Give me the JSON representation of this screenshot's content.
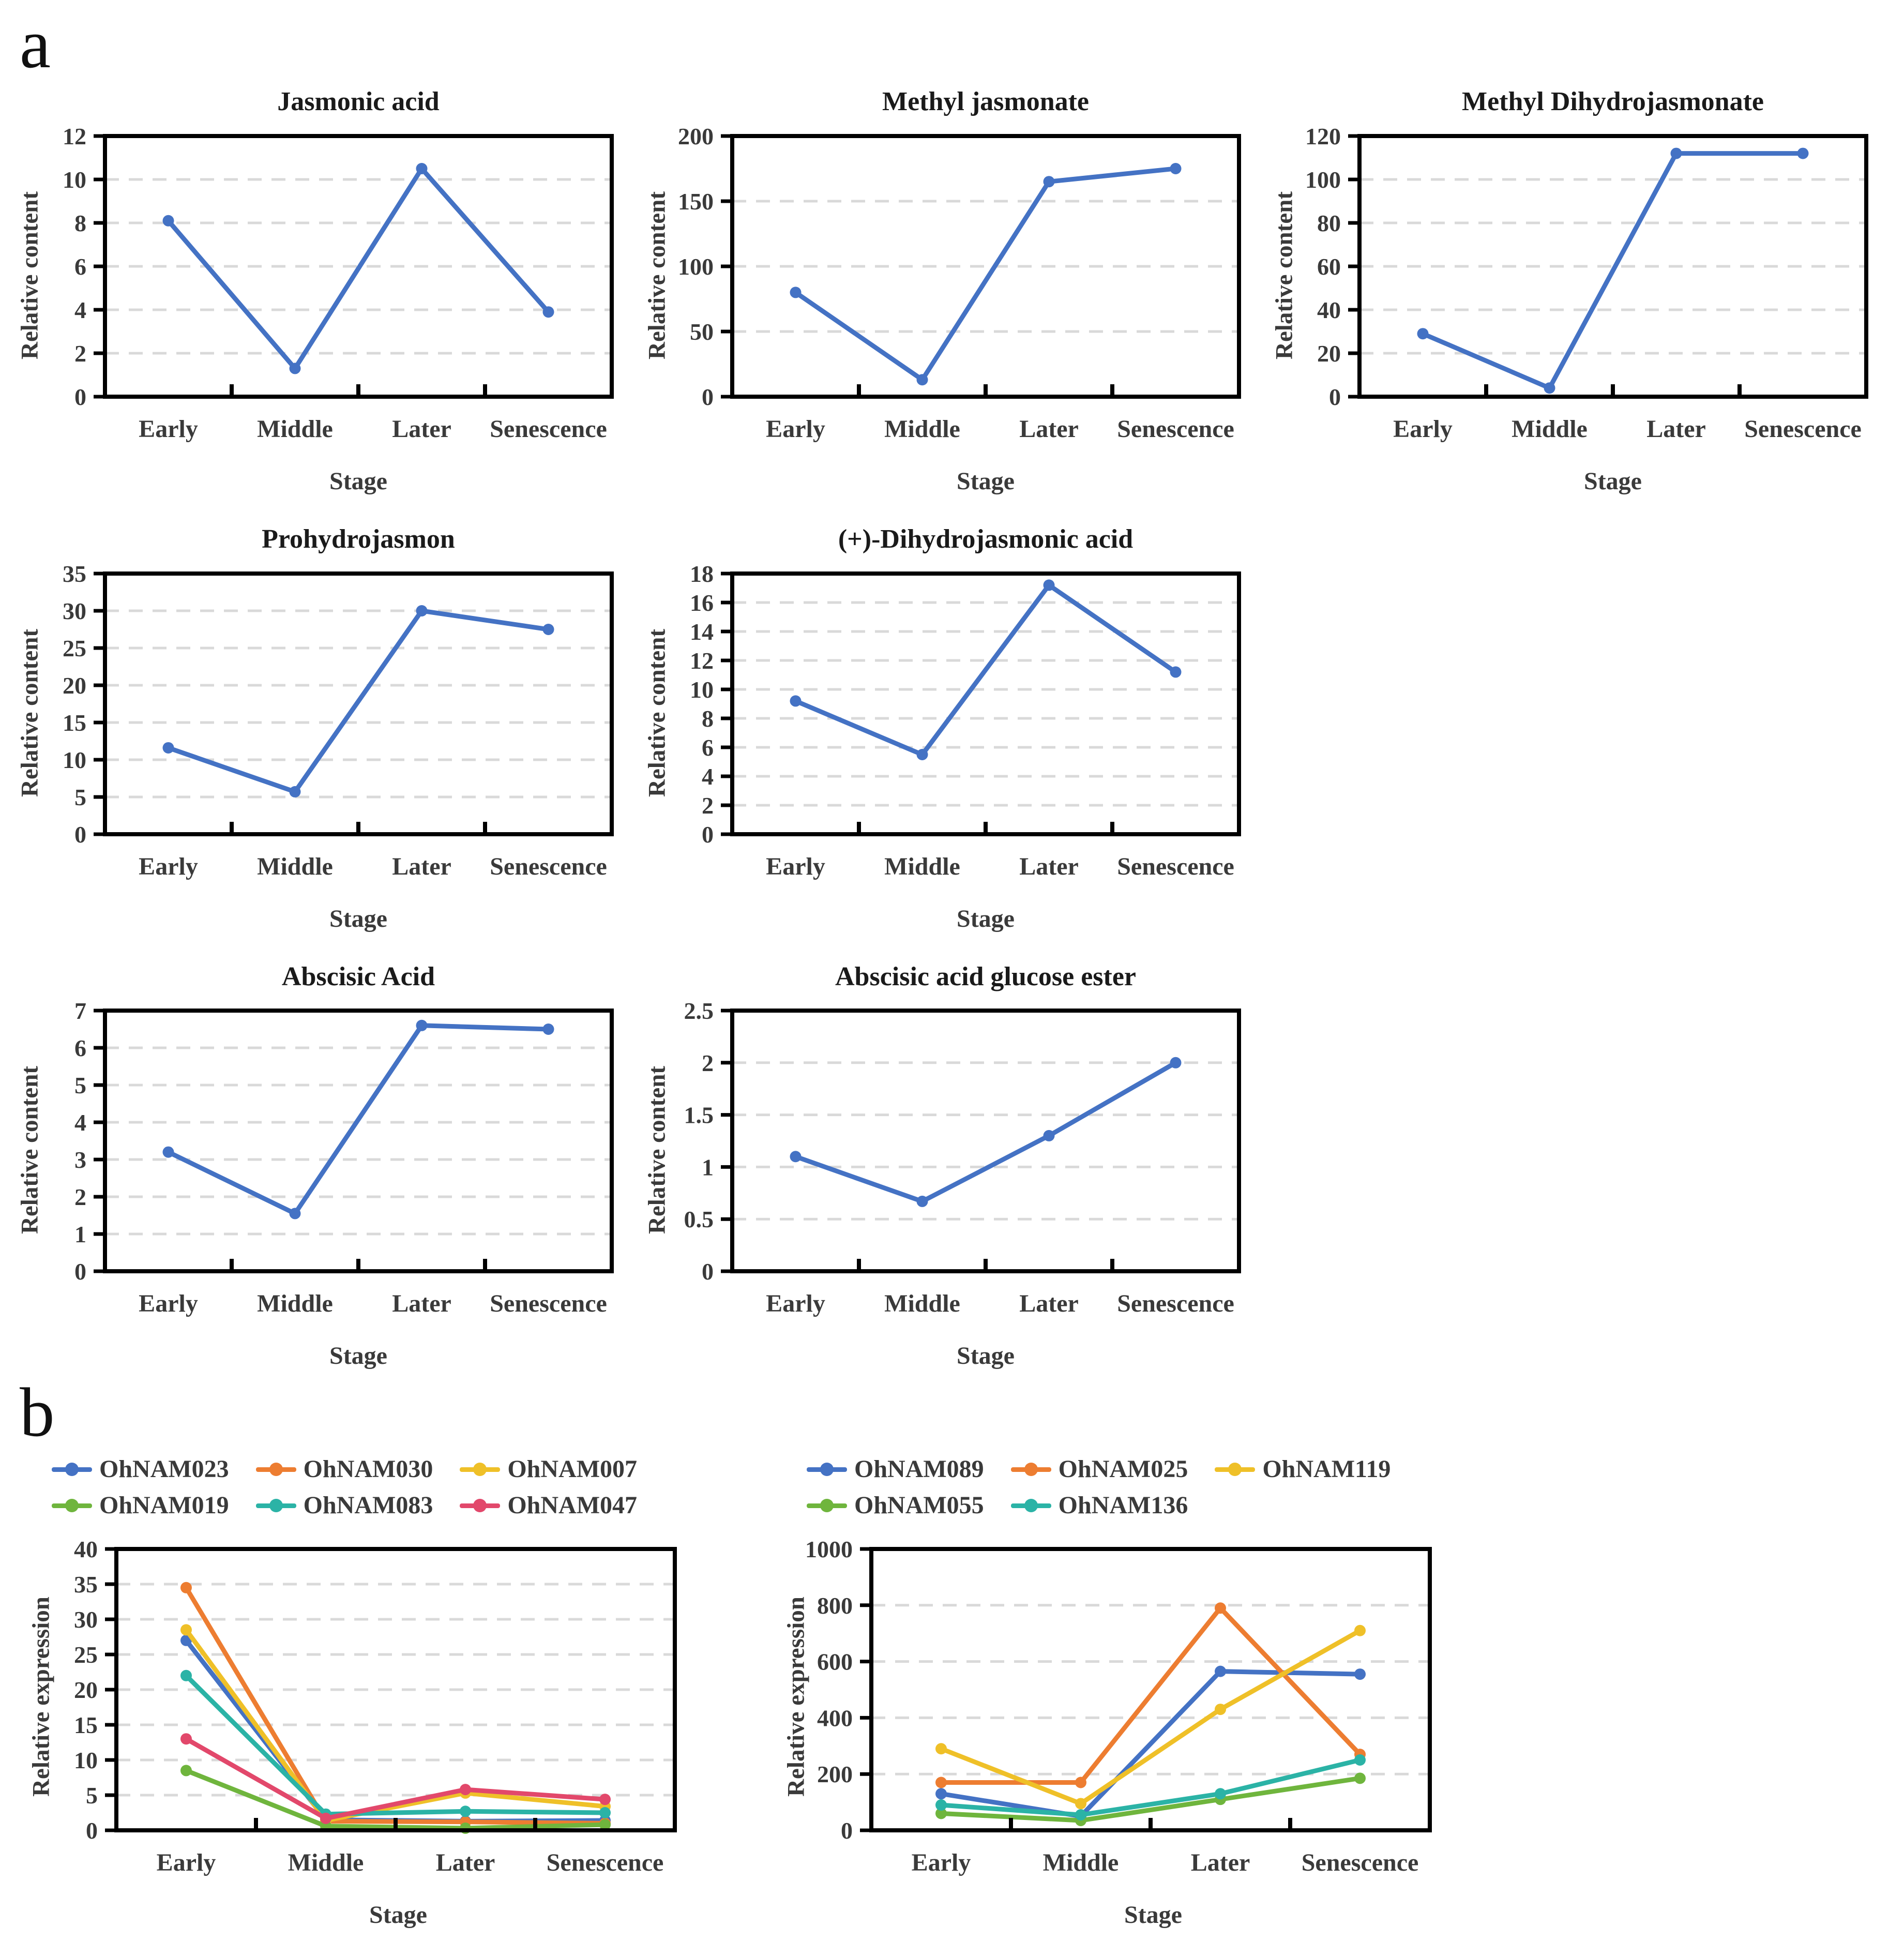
{
  "panel_a_label": "a",
  "panel_b_label": "b",
  "colors": {
    "blue": "#4472C4",
    "orange": "#ED7D31",
    "yellow": "#EFC028",
    "green": "#6FB53D",
    "teal": "#2BB3A6",
    "red": "#E2486B",
    "grid": "#D9D9D9",
    "axis": "#000000",
    "text": "#262626"
  },
  "chart_data": [
    {
      "type": "line",
      "panel": "a",
      "title": "Jasmonic acid",
      "xlabel": "Stage",
      "ylabel": "Relative content",
      "categories": [
        "Early",
        "Middle",
        "Later",
        "Senescence"
      ],
      "ylim": [
        0,
        12
      ],
      "ytick_step": 2,
      "grid": "dashed-horizontal",
      "legend_position": "none",
      "series": [
        {
          "name": "Jasmonic acid",
          "color": "blue",
          "values": [
            8.1,
            1.3,
            10.5,
            3.9
          ]
        }
      ]
    },
    {
      "type": "line",
      "panel": "a",
      "title": "Methyl jasmonate",
      "xlabel": "Stage",
      "ylabel": "Relative content",
      "categories": [
        "Early",
        "Middle",
        "Later",
        "Senescence"
      ],
      "ylim": [
        0,
        200
      ],
      "ytick_step": 50,
      "grid": "dashed-horizontal",
      "legend_position": "none",
      "series": [
        {
          "name": "Methyl jasmonate",
          "color": "blue",
          "values": [
            80,
            13,
            165,
            175
          ]
        }
      ]
    },
    {
      "type": "line",
      "panel": "a",
      "title": "Methyl Dihydrojasmonate",
      "xlabel": "Stage",
      "ylabel": "Relative content",
      "categories": [
        "Early",
        "Middle",
        "Later",
        "Senescence"
      ],
      "ylim": [
        0,
        120
      ],
      "ytick_step": 20,
      "grid": "dashed-horizontal",
      "legend_position": "none",
      "series": [
        {
          "name": "Methyl Dihydrojasmonate",
          "color": "blue",
          "values": [
            29,
            4,
            112,
            112
          ]
        }
      ]
    },
    {
      "type": "line",
      "panel": "a",
      "title": "Prohydrojasmon",
      "xlabel": "Stage",
      "ylabel": "Relative content",
      "categories": [
        "Early",
        "Middle",
        "Later",
        "Senescence"
      ],
      "ylim": [
        0,
        35
      ],
      "ytick_step": 5,
      "grid": "dashed-horizontal",
      "legend_position": "none",
      "series": [
        {
          "name": "Prohydrojasmon",
          "color": "blue",
          "values": [
            11.6,
            5.7,
            30,
            27.5
          ]
        }
      ]
    },
    {
      "type": "line",
      "panel": "a",
      "title": "(+)-Dihydrojasmonic acid",
      "xlabel": "Stage",
      "ylabel": "Relative content",
      "categories": [
        "Early",
        "Middle",
        "Later",
        "Senescence"
      ],
      "ylim": [
        0,
        18
      ],
      "ytick_step": 2,
      "grid": "dashed-horizontal",
      "legend_position": "none",
      "series": [
        {
          "name": "(+)-Dihydrojasmonic acid",
          "color": "blue",
          "values": [
            9.2,
            5.5,
            17.2,
            11.2
          ]
        }
      ]
    },
    {
      "type": "line",
      "panel": "a",
      "title": "Abscisic Acid",
      "xlabel": "Stage",
      "ylabel": "Relative content",
      "categories": [
        "Early",
        "Middle",
        "Later",
        "Senescence"
      ],
      "ylim": [
        0,
        7
      ],
      "ytick_step": 1,
      "grid": "dashed-horizontal",
      "legend_position": "none",
      "series": [
        {
          "name": "Abscisic Acid",
          "color": "blue",
          "values": [
            3.2,
            1.55,
            6.6,
            6.5
          ]
        }
      ]
    },
    {
      "type": "line",
      "panel": "a",
      "title": "Abscisic acid glucose ester",
      "xlabel": "Stage",
      "ylabel": "Relative content",
      "categories": [
        "Early",
        "Middle",
        "Later",
        "Senescence"
      ],
      "ylim": [
        0,
        2.5
      ],
      "ytick_step": 0.5,
      "grid": "dashed-horizontal",
      "legend_position": "none",
      "series": [
        {
          "name": "Abscisic acid glucose ester",
          "color": "blue",
          "values": [
            1.1,
            0.67,
            1.3,
            2.0
          ]
        }
      ]
    },
    {
      "type": "line",
      "panel": "b",
      "title": "",
      "xlabel": "Stage",
      "ylabel": "Relative expression",
      "categories": [
        "Early",
        "Middle",
        "Later",
        "Senescence"
      ],
      "ylim": [
        0,
        40
      ],
      "ytick_step": 5,
      "grid": "dashed-horizontal",
      "legend_position": "top",
      "legend_rows": [
        [
          0,
          1,
          2
        ],
        [
          3,
          4,
          5
        ]
      ],
      "series": [
        {
          "name": "OhNAM023",
          "color": "blue",
          "values": [
            27,
            1.5,
            1.3,
            1.4
          ]
        },
        {
          "name": "OhNAM030",
          "color": "orange",
          "values": [
            34.5,
            1.3,
            1.2,
            1.0
          ]
        },
        {
          "name": "OhNAM007",
          "color": "yellow",
          "values": [
            28.5,
            1.4,
            5.3,
            3.4
          ]
        },
        {
          "name": "OhNAM019",
          "color": "green",
          "values": [
            8.5,
            0.6,
            0.3,
            0.8
          ]
        },
        {
          "name": "OhNAM083",
          "color": "teal",
          "values": [
            22,
            2.3,
            2.7,
            2.5
          ]
        },
        {
          "name": "OhNAM047",
          "color": "red",
          "values": [
            13,
            1.7,
            5.8,
            4.4
          ]
        }
      ]
    },
    {
      "type": "line",
      "panel": "b",
      "title": "",
      "xlabel": "Stage",
      "ylabel": "Relative expression",
      "categories": [
        "Early",
        "Middle",
        "Later",
        "Senescence"
      ],
      "ylim": [
        0,
        1000
      ],
      "ytick_step": 200,
      "grid": "dashed-horizontal",
      "legend_position": "top",
      "legend_rows": [
        [
          0,
          1,
          2
        ],
        [
          3,
          4
        ]
      ],
      "series": [
        {
          "name": "OhNAM089",
          "color": "blue",
          "values": [
            130,
            50,
            565,
            555
          ]
        },
        {
          "name": "OhNAM025",
          "color": "orange",
          "values": [
            170,
            170,
            790,
            270
          ]
        },
        {
          "name": "OhNAM119",
          "color": "yellow",
          "values": [
            290,
            95,
            430,
            710
          ]
        },
        {
          "name": "OhNAM055",
          "color": "green",
          "values": [
            60,
            35,
            110,
            185
          ]
        },
        {
          "name": "OhNAM136",
          "color": "teal",
          "values": [
            90,
            55,
            130,
            250
          ]
        }
      ]
    }
  ]
}
